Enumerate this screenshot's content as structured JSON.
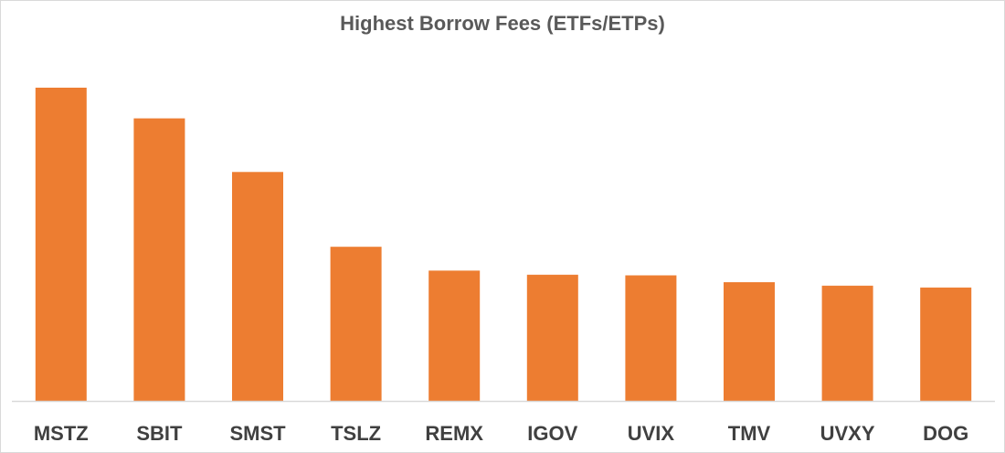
{
  "chart_data": {
    "type": "bar",
    "title": "Highest Borrow Fees (ETFs/ETPs)",
    "xlabel": "",
    "ylabel": "",
    "categories": [
      "MSTZ",
      "SBIT",
      "SMST",
      "TSLZ",
      "REMX",
      "IGOV",
      "UVIX",
      "TMV",
      "UVXY",
      "DOG"
    ],
    "values": [
      100,
      90.2,
      73.1,
      49.2,
      41.6,
      40.3,
      40.1,
      37.9,
      36.8,
      36.2
    ],
    "ylim": [
      0,
      100
    ],
    "grid": false,
    "legend": "none",
    "bar_color": "#ED7D31",
    "axis_color": "#D9D9D9"
  }
}
